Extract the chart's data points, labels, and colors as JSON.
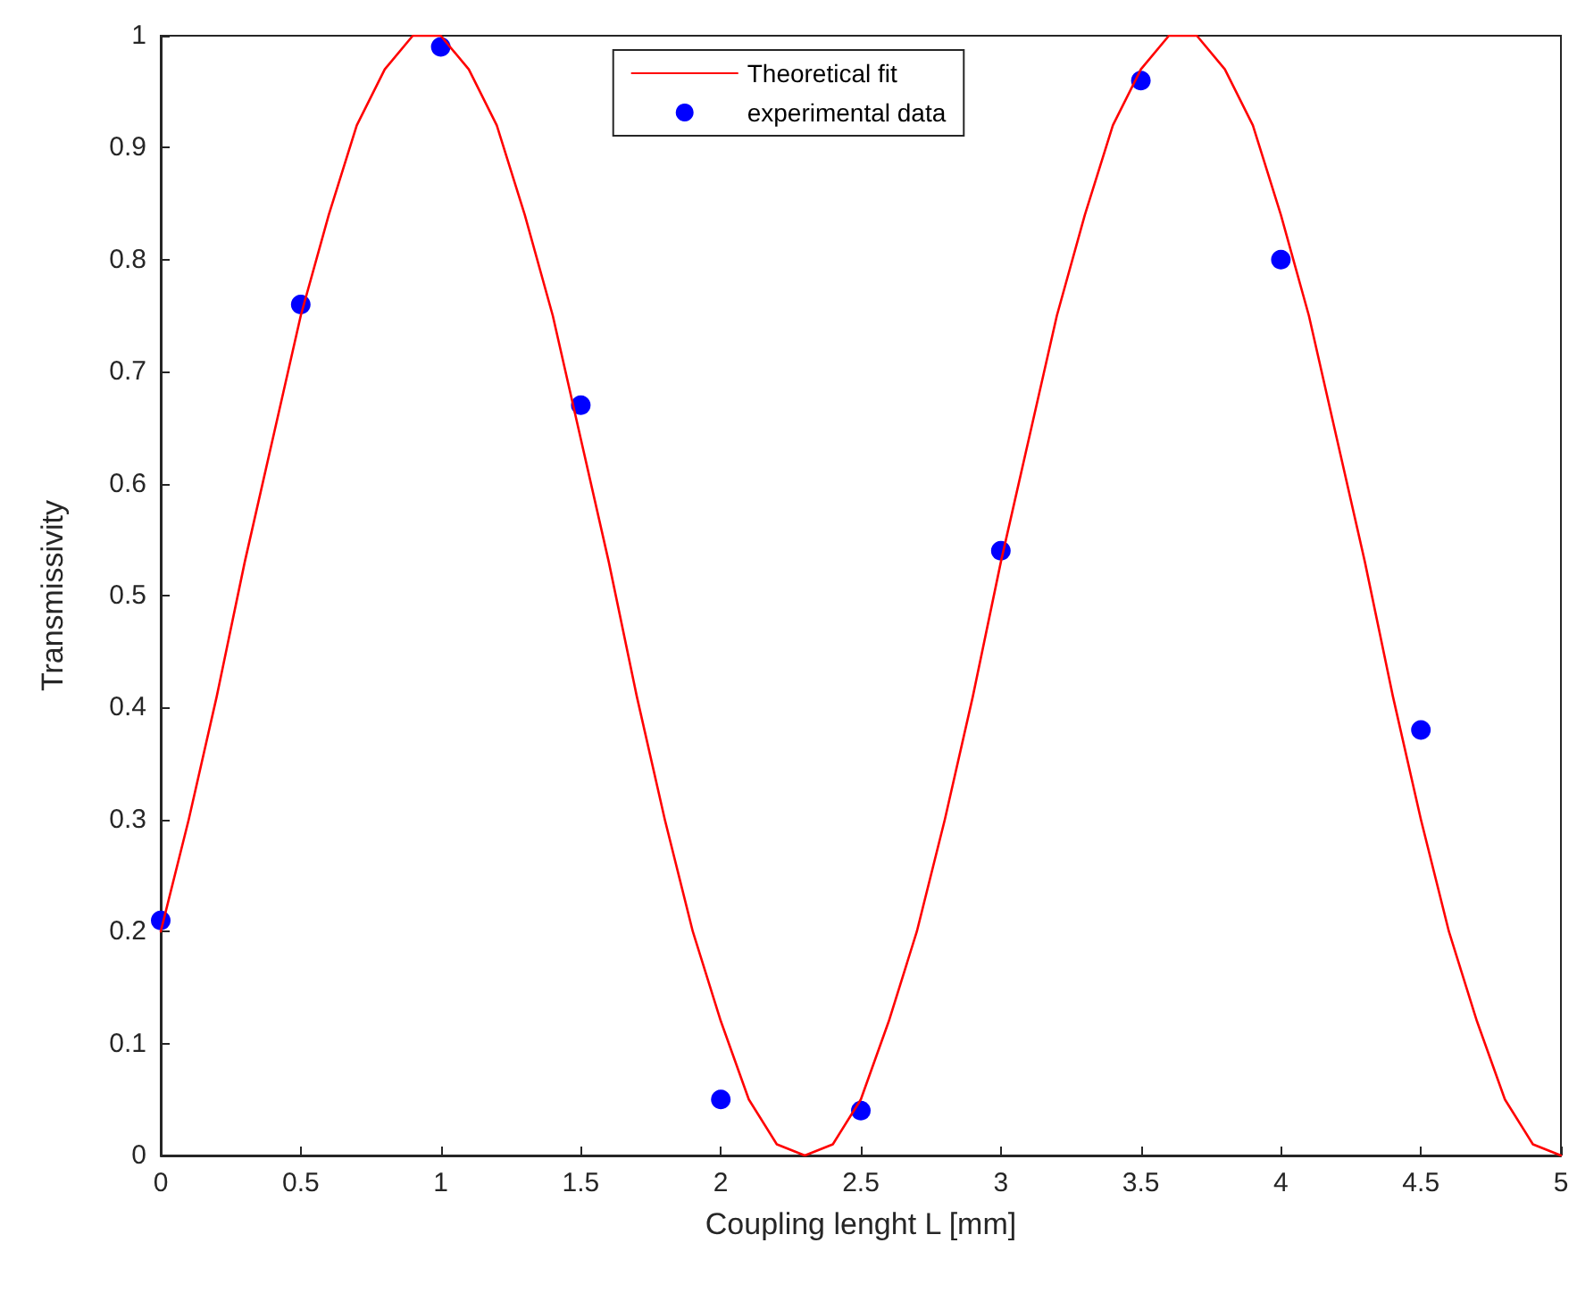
{
  "chart_data": {
    "type": "line",
    "xlabel": "Coupling lenght L [mm]",
    "ylabel": "Transmissivity",
    "xlim": [
      0,
      5
    ],
    "xticks": [
      0,
      0.5,
      1,
      1.5,
      2,
      2.5,
      3,
      3.5,
      4,
      4.5,
      5
    ],
    "ylim": [
      0,
      1
    ],
    "yticks": [
      0,
      0.1,
      0.2,
      0.3,
      0.4,
      0.5,
      0.6,
      0.7,
      0.8,
      0.9,
      1
    ],
    "grid": false,
    "legend": "top",
    "series": [
      {
        "name": "Theoretical fit",
        "type": "line",
        "color": "#ff0000",
        "marker": "none",
        "line_style": "solid",
        "x": [
          0,
          0.1,
          0.2,
          0.3,
          0.4,
          0.5,
          0.6,
          0.7,
          0.8,
          0.9,
          1,
          1.1,
          1.2,
          1.3,
          1.4,
          1.5,
          1.6,
          1.7,
          1.8,
          1.9,
          2,
          2.1,
          2.2,
          2.3,
          2.4,
          2.5,
          2.6,
          2.7,
          2.8,
          2.9,
          3,
          3.1,
          3.2,
          3.3,
          3.4,
          3.5,
          3.6,
          3.7,
          3.8,
          3.9,
          4,
          4.1,
          4.2,
          4.3,
          4.4,
          4.5,
          4.6,
          4.7,
          4.8,
          4.9,
          5
        ],
        "values": [
          0.2,
          0.3,
          0.41,
          0.53,
          0.64,
          0.75,
          0.84,
          0.92,
          0.97,
          1,
          1,
          0.97,
          0.92,
          0.84,
          0.75,
          0.64,
          0.53,
          0.41,
          0.3,
          0.2,
          0.12,
          0.05,
          0.01,
          0,
          0.01,
          0.05,
          0.12,
          0.2,
          0.3,
          0.41,
          0.53,
          0.64,
          0.75,
          0.84,
          0.92,
          0.97,
          1,
          1,
          0.97,
          0.92,
          0.84,
          0.75,
          0.64,
          0.53,
          0.41,
          0.3,
          0.2,
          0.12,
          0.05,
          0.01,
          0
        ]
      },
      {
        "name": "experimental data",
        "type": "scatter",
        "color": "#0000ff",
        "marker": "circle",
        "x": [
          0,
          0.5,
          1,
          1.5,
          2,
          2.5,
          3,
          3.5,
          4,
          4.5
        ],
        "values": [
          0.21,
          0.76,
          0.99,
          0.67,
          0.05,
          0.04,
          0.54,
          0.96,
          0.8,
          0.38
        ]
      }
    ]
  }
}
